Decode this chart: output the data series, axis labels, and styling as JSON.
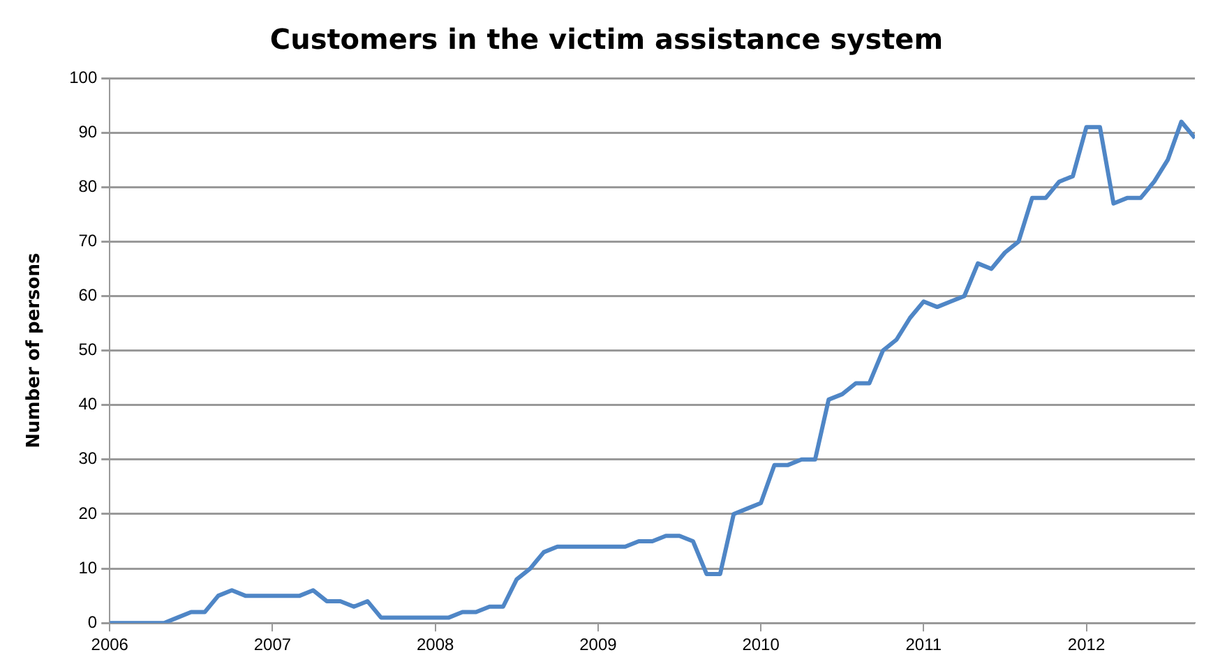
{
  "chart_data": {
    "type": "line",
    "title": "Customers in the victim assistance system",
    "ylabel": "Number of persons",
    "x": [
      "2006-01",
      "2006-02",
      "2006-03",
      "2006-04",
      "2006-05",
      "2006-06",
      "2006-07",
      "2006-08",
      "2006-09",
      "2006-10",
      "2006-11",
      "2006-12",
      "2007-01",
      "2007-02",
      "2007-03",
      "2007-04",
      "2007-05",
      "2007-06",
      "2007-07",
      "2007-08",
      "2007-09",
      "2007-10",
      "2007-11",
      "2007-12",
      "2008-01",
      "2008-02",
      "2008-03",
      "2008-04",
      "2008-05",
      "2008-06",
      "2008-07",
      "2008-08",
      "2008-09",
      "2008-10",
      "2008-11",
      "2008-12",
      "2009-01",
      "2009-02",
      "2009-03",
      "2009-04",
      "2009-05",
      "2009-06",
      "2009-07",
      "2009-08",
      "2009-09",
      "2009-10",
      "2009-11",
      "2009-12",
      "2010-01",
      "2010-02",
      "2010-03",
      "2010-04",
      "2010-05",
      "2010-06",
      "2010-07",
      "2010-08",
      "2010-09",
      "2010-10",
      "2010-11",
      "2010-12",
      "2011-01",
      "2011-02",
      "2011-03",
      "2011-04",
      "2011-05",
      "2011-06",
      "2011-07",
      "2011-08",
      "2011-09",
      "2011-10",
      "2011-11",
      "2011-12",
      "2012-01",
      "2012-02",
      "2012-03",
      "2012-04",
      "2012-05",
      "2012-06",
      "2012-07",
      "2012-08",
      "2012-09"
    ],
    "series": [
      {
        "color": "#4f86c6",
        "values": [
          0,
          0,
          0,
          0,
          0,
          1,
          2,
          2,
          5,
          6,
          5,
          5,
          5,
          5,
          5,
          6,
          4,
          4,
          3,
          4,
          1,
          1,
          1,
          1,
          1,
          1,
          2,
          2,
          3,
          3,
          8,
          10,
          13,
          14,
          14,
          14,
          14,
          14,
          14,
          15,
          15,
          16,
          16,
          15,
          9,
          9,
          20,
          21,
          22,
          29,
          29,
          30,
          30,
          41,
          42,
          44,
          44,
          50,
          52,
          56,
          59,
          58,
          59,
          60,
          66,
          65,
          68,
          70,
          78,
          78,
          81,
          82,
          91,
          91,
          77,
          78,
          78,
          81,
          85,
          92,
          89
        ]
      }
    ],
    "xlim": [
      "2006-01",
      "2012-09"
    ],
    "xticks": [
      "2006",
      "2007",
      "2008",
      "2009",
      "2010",
      "2011",
      "2012"
    ],
    "ylim": [
      0,
      100
    ],
    "yticks": [
      0,
      10,
      20,
      30,
      40,
      50,
      60,
      70,
      80,
      90,
      100
    ],
    "grid": "y",
    "legend": false,
    "marker": "none",
    "line_style": "solid"
  }
}
